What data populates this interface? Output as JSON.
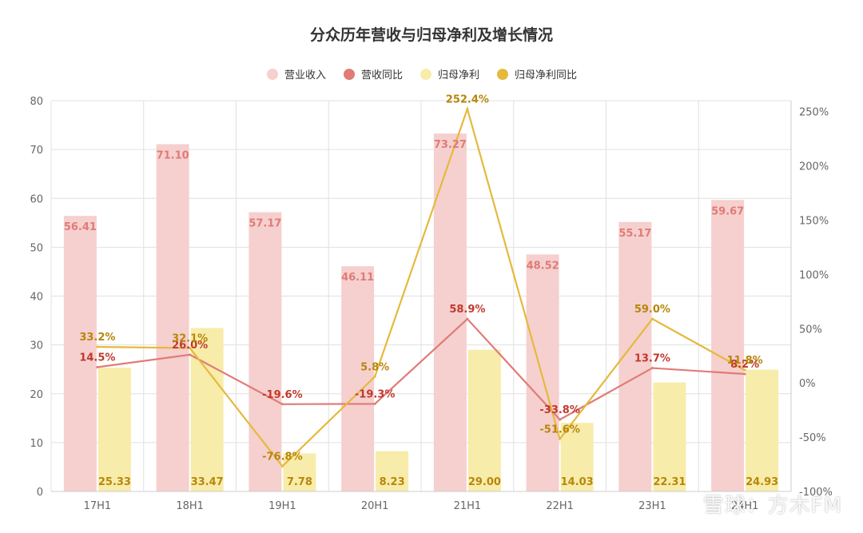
{
  "chart_data": {
    "type": "bar",
    "title": "分众历年营收与归母净利及增长情况",
    "categories": [
      "17H1",
      "18H1",
      "19H1",
      "20H1",
      "21H1",
      "22H1",
      "23H1",
      "24H1"
    ],
    "series": [
      {
        "name": "营业收入",
        "kind": "bar",
        "axis": "left",
        "color": "#f5d0ce",
        "label_color": "#e07b78",
        "values": [
          56.41,
          71.1,
          57.17,
          46.11,
          73.27,
          48.52,
          55.17,
          59.67
        ],
        "labels": [
          "56.41",
          "71.10",
          "57.17",
          "46.11",
          "73.27",
          "48.52",
          "55.17",
          "59.67"
        ]
      },
      {
        "name": "营收同比",
        "kind": "line",
        "axis": "right",
        "color": "#e07b78",
        "label_color": "#c0392b",
        "values": [
          14.5,
          26.0,
          -19.6,
          -19.3,
          58.9,
          -33.8,
          13.7,
          8.2
        ],
        "labels": [
          "14.5%",
          "26.0%",
          "-19.6%",
          "-19.3%",
          "58.9%",
          "-33.8%",
          "13.7%",
          "8.2%"
        ]
      },
      {
        "name": "归母净利",
        "kind": "bar",
        "axis": "left",
        "color": "#f7ecaa",
        "label_color": "#b8860b",
        "values": [
          25.33,
          33.47,
          7.78,
          8.23,
          29.0,
          14.03,
          22.31,
          24.93
        ],
        "labels": [
          "25.33",
          "33.47",
          "7.78",
          "8.23",
          "29.00",
          "14.03",
          "22.31",
          "24.93"
        ]
      },
      {
        "name": "归母净利同比",
        "kind": "line",
        "axis": "right",
        "color": "#e5b93d",
        "label_color": "#b8860b",
        "values": [
          33.2,
          32.1,
          -76.8,
          5.8,
          252.4,
          -51.6,
          59.0,
          11.8
        ],
        "labels": [
          "33.2%",
          "32.1%",
          "-76.8%",
          "5.8%",
          "252.4%",
          "-51.6%",
          "59.0%",
          "11.8%"
        ]
      }
    ],
    "ylim": [
      0,
      80
    ],
    "yticks": [
      "0",
      "10",
      "20",
      "30",
      "40",
      "50",
      "60",
      "70",
      "80"
    ],
    "y2lim": [
      -100,
      260
    ],
    "y2ticks": [
      "-100%",
      "-50%",
      "0%",
      "50%",
      "100%",
      "150%",
      "200%",
      "250%"
    ],
    "grid": true,
    "legend_position": "top-center"
  },
  "watermark": "雪球：方木FM"
}
